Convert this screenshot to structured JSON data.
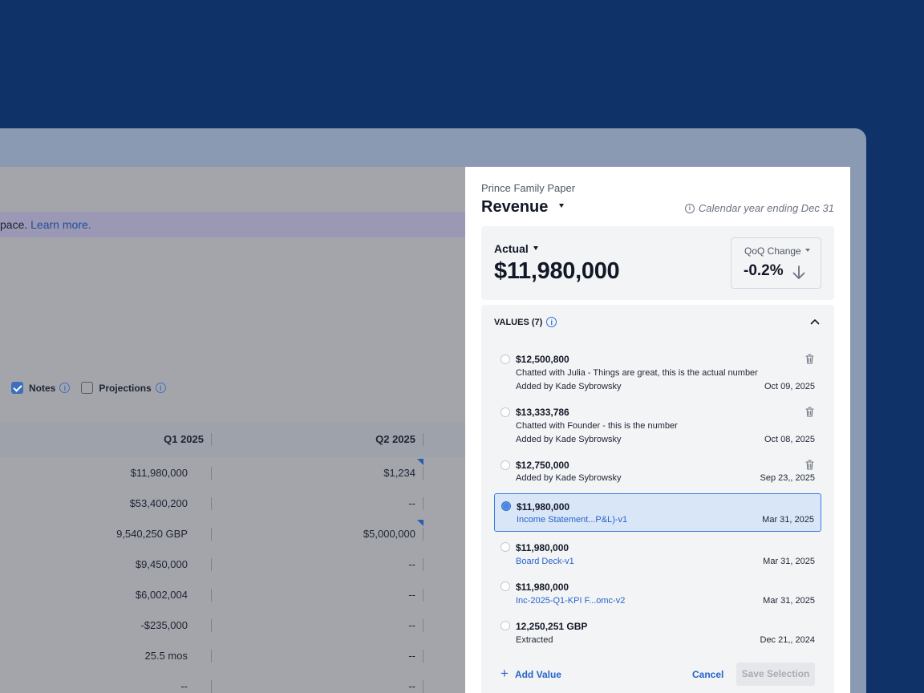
{
  "background_table": {
    "banner_text": "pace.",
    "banner_link": "Learn more.",
    "options": [
      {
        "label": "Notes",
        "checked": true
      },
      {
        "label": "Projections",
        "checked": false
      }
    ],
    "columns": [
      "Q1 2025",
      "Q2 2025"
    ],
    "rows": [
      {
        "q1": "$11,980,000",
        "q2": "$1,234"
      },
      {
        "q1": "$53,400,200",
        "q2": "--"
      },
      {
        "q1": "9,540,250 GBP",
        "q2": "$5,000,000"
      },
      {
        "q1": "$9,450,000",
        "q2": "--"
      },
      {
        "q1": "$6,002,004",
        "q2": "--"
      },
      {
        "q1": "-$235,000",
        "q2": "--"
      },
      {
        "q1": "25.5 mos",
        "q2": "--"
      },
      {
        "q1": "--",
        "q2": "--"
      }
    ]
  },
  "panel": {
    "company": "Prince Family Paper",
    "metric": "Revenue",
    "calendar_note": "Calendar year ending Dec 31",
    "actual": {
      "label": "Actual",
      "value": "$11,980,000"
    },
    "qoq": {
      "label": "QoQ Change",
      "value": "-0.2%",
      "direction": "down"
    },
    "values_title": "VALUES (7)",
    "values": [
      {
        "amount": "$12,500,800",
        "note": "Chatted with Julia - Things are great, this is the actual number",
        "by": "Added by Kade Sybrowsky",
        "date": "Oct 09, 2025",
        "deletable": true,
        "selected": false
      },
      {
        "amount": "$13,333,786",
        "note": "Chatted with Founder - this is the number",
        "by": "Added by Kade Sybrowsky",
        "date": "Oct 08, 2025",
        "deletable": true,
        "selected": false
      },
      {
        "amount": "$12,750,000",
        "by": "Added by Kade Sybrowsky",
        "date": "Sep 23,, 2025",
        "deletable": true,
        "selected": false
      },
      {
        "amount": "$11,980,000",
        "source": "Income Statement...P&L)-v1",
        "date": "Mar 31, 2025",
        "selected": true
      },
      {
        "amount": "$11,980,000",
        "source": "Board Deck-v1",
        "date": "Mar 31, 2025",
        "selected": false
      },
      {
        "amount": "$11,980,000",
        "source": "Inc-2025-Q1-KPI F...omc-v2",
        "date": "Mar 31, 2025",
        "selected": false
      },
      {
        "amount": "12,250,251 GBP",
        "by": "Extracted",
        "date": "Dec 21,, 2024",
        "selected": false
      }
    ],
    "add_value": "Add Value",
    "cancel": "Cancel",
    "save": "Save Selection"
  },
  "colors": {
    "page_bg": "#0f3268",
    "link_blue": "#2563c9",
    "selected_bg": "#d9e6f8",
    "selected_border": "#3f7ddb"
  }
}
